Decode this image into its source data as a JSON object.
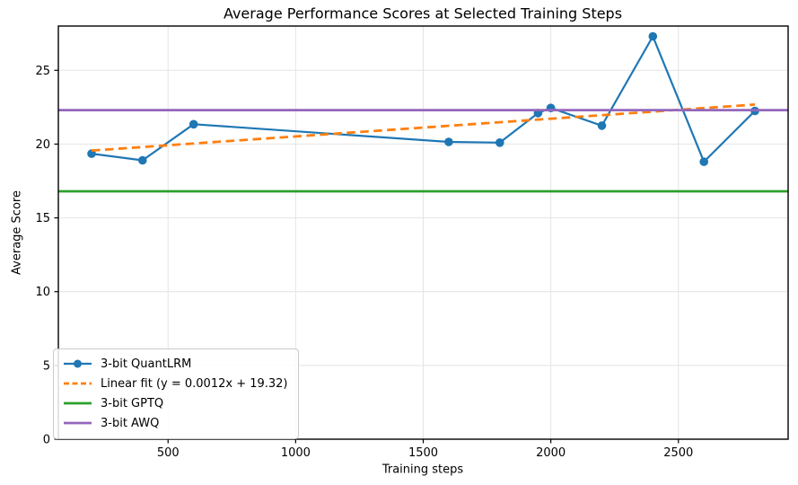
{
  "chart_data": {
    "type": "line",
    "title": "Average Performance Scores at Selected Training Steps",
    "xlabel": "Training steps",
    "ylabel": "Average Score",
    "xlim": [
      70,
      2930
    ],
    "ylim": [
      0,
      28
    ],
    "xticks": [
      500,
      1000,
      1500,
      2000,
      2500
    ],
    "yticks": [
      0,
      5,
      10,
      15,
      20,
      25
    ],
    "grid": true,
    "grid_color": "#e4e4e4",
    "spine_color": "#000000",
    "legend_position": "lower left",
    "series": [
      {
        "name": "3-bit QuantLRM",
        "type": "line",
        "marker": "circle",
        "color": "#1f77b4",
        "x": [
          200,
          400,
          600,
          1600,
          1800,
          1950,
          2000,
          2200,
          2400,
          2600,
          2800
        ],
        "y": [
          19.35,
          18.9,
          21.35,
          20.15,
          20.1,
          22.1,
          22.45,
          21.25,
          27.3,
          18.8,
          22.25
        ]
      },
      {
        "name": "Linear fit (y = 0.0012x + 19.32)",
        "type": "dashed",
        "color": "#ff7f0e",
        "slope": 0.0012,
        "intercept": 19.32,
        "x_range": [
          200,
          2800
        ]
      },
      {
        "name": "3-bit GPTQ",
        "type": "hline",
        "color": "#2ca02c",
        "y": 16.8
      },
      {
        "name": "3-bit AWQ",
        "type": "hline",
        "color": "#9467bd",
        "y": 22.3
      }
    ]
  }
}
